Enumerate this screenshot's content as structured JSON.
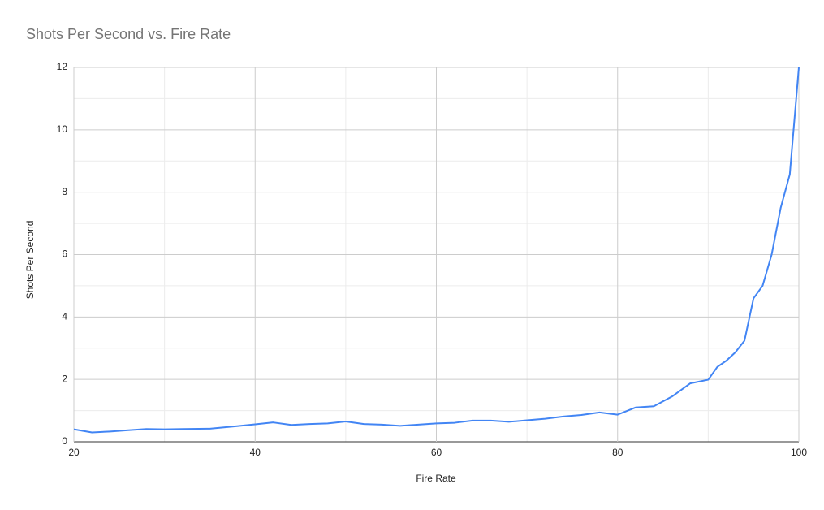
{
  "chart_data": {
    "type": "line",
    "title": "Shots Per Second vs. Fire Rate",
    "x_label": "Fire Rate",
    "y_label": "Shots Per Second",
    "x": [
      20,
      22,
      24,
      26,
      28,
      30,
      32,
      35,
      38,
      40,
      42,
      44,
      46,
      48,
      50,
      52,
      54,
      56,
      58,
      60,
      62,
      64,
      66,
      68,
      70,
      72,
      74,
      76,
      78,
      80,
      82,
      84,
      86,
      88,
      90,
      91,
      92,
      93,
      94,
      95,
      96,
      97,
      98,
      99,
      100
    ],
    "series": [
      {
        "name": "Shots Per Second",
        "color": "#4285f4",
        "values": [
          0.4,
          0.3,
          0.33,
          0.37,
          0.41,
          0.4,
          0.41,
          0.42,
          0.5,
          0.56,
          0.62,
          0.54,
          0.57,
          0.59,
          0.65,
          0.57,
          0.55,
          0.51,
          0.55,
          0.59,
          0.61,
          0.68,
          0.68,
          0.64,
          0.69,
          0.74,
          0.81,
          0.86,
          0.94,
          0.87,
          1.1,
          1.14,
          1.45,
          1.87,
          1.99,
          2.4,
          2.6,
          2.87,
          3.24,
          4.6,
          5.0,
          6.0,
          7.5,
          8.57,
          12
        ]
      }
    ],
    "xlim": [
      20,
      100
    ],
    "xticks": [
      20,
      40,
      60,
      80,
      100
    ],
    "ylim": [
      0,
      12
    ],
    "yticks": [
      0,
      2,
      4,
      6,
      8,
      10,
      12
    ],
    "grid": true,
    "minor_grid": true
  }
}
